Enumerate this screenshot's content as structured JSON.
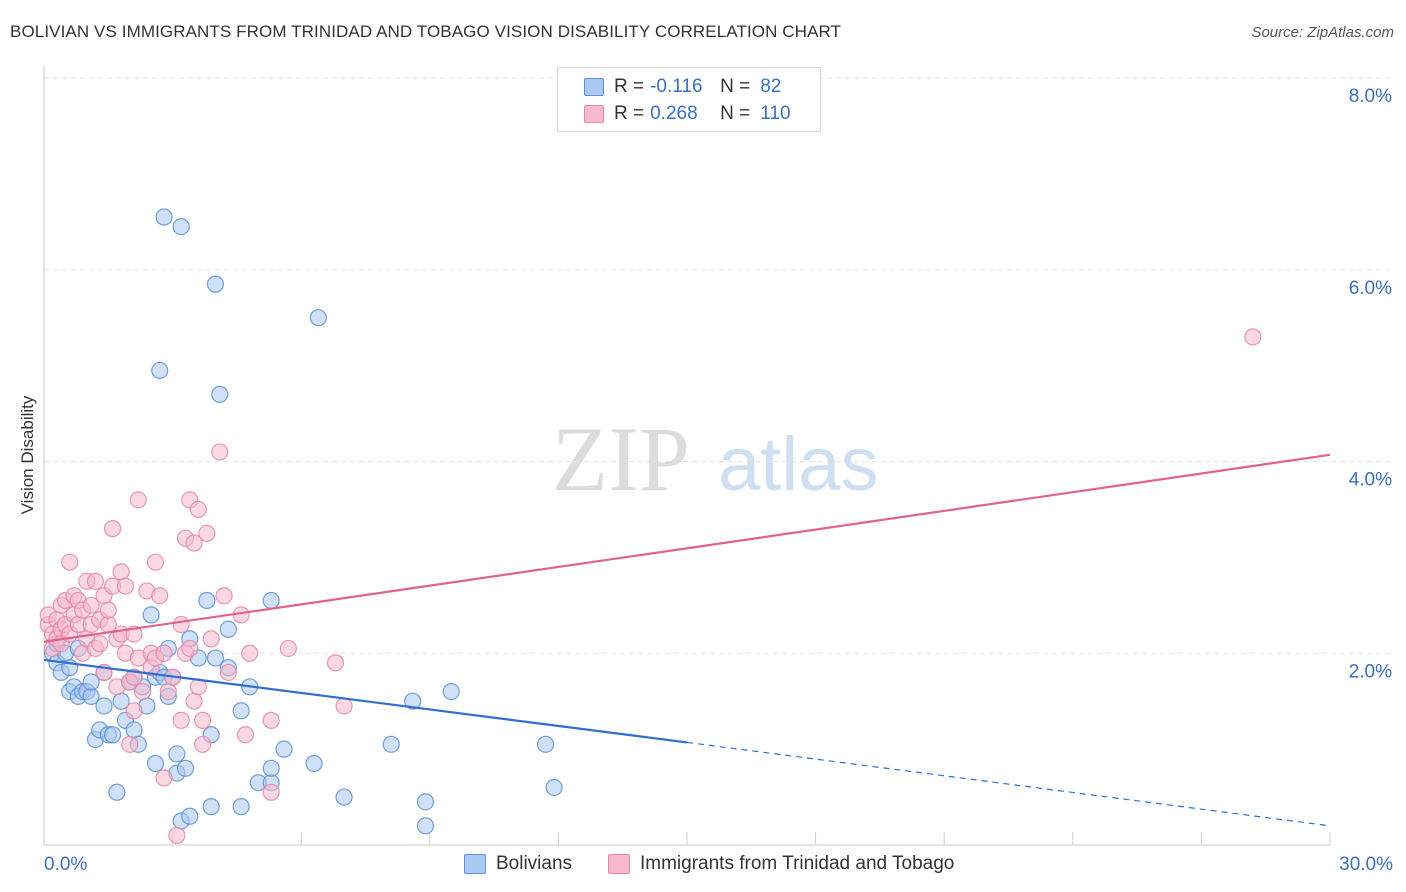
{
  "title": "BOLIVIAN VS IMMIGRANTS FROM TRINIDAD AND TOBAGO VISION DISABILITY CORRELATION CHART",
  "source": "Source: ZipAtlas.com",
  "watermark": {
    "zip": "ZIP",
    "atlas": "atlas"
  },
  "colors": {
    "blue_fill": "#aac8f0",
    "blue_stroke": "#5b8fd8",
    "blue_line": "#2f6fd0",
    "pink_fill": "#f6b8cc",
    "pink_stroke": "#e886a6",
    "pink_line": "#e2628c",
    "tick_label": "#3a6fc4",
    "grid": "#e3e3e3"
  },
  "stats": [
    {
      "r_label": "R =",
      "r_value": "-0.116",
      "n_label": "N =",
      "n_value": "82",
      "color": "blue"
    },
    {
      "r_label": "R =",
      "r_value": "0.268",
      "n_label": "N =",
      "n_value": "110",
      "color": "pink"
    }
  ],
  "legend": [
    {
      "label": "Bolivians",
      "color": "blue"
    },
    {
      "label": "Immigrants from Trinidad and Tobago",
      "color": "pink"
    }
  ],
  "chart_data": {
    "type": "scatter",
    "title": "BOLIVIAN VS IMMIGRANTS FROM TRINIDAD AND TOBAGO VISION DISABILITY CORRELATION CHART",
    "xlabel": "",
    "ylabel": "Vision Disability",
    "xlim": [
      0,
      30
    ],
    "ylim": [
      0,
      8
    ],
    "x_tick_labels": [
      "0.0%",
      "30.0%"
    ],
    "y_ticks": [
      2,
      4,
      6,
      8
    ],
    "y_tick_labels": [
      "2.0%",
      "4.0%",
      "6.0%",
      "8.0%"
    ],
    "grid": true,
    "legend_position": "bottom-center",
    "series": [
      {
        "name": "Bolivians",
        "color": "blue",
        "trend": {
          "x0": 0,
          "y0": 1.93,
          "x1": 15,
          "y1": 1.07,
          "dash_to_x": 30,
          "dash_to_y": 0.2
        },
        "points": [
          [
            0.2,
            2.0
          ],
          [
            0.3,
            2.1
          ],
          [
            0.3,
            1.9
          ],
          [
            0.4,
            1.8
          ],
          [
            0.5,
            2.0
          ],
          [
            0.6,
            1.85
          ],
          [
            0.6,
            1.6
          ],
          [
            0.7,
            1.65
          ],
          [
            0.8,
            2.05
          ],
          [
            0.8,
            1.55
          ],
          [
            0.9,
            1.6
          ],
          [
            1.0,
            1.6
          ],
          [
            1.1,
            1.55
          ],
          [
            1.1,
            1.7
          ],
          [
            1.2,
            1.1
          ],
          [
            1.3,
            1.2
          ],
          [
            1.4,
            1.45
          ],
          [
            1.4,
            1.8
          ],
          [
            1.5,
            1.15
          ],
          [
            1.6,
            1.15
          ],
          [
            1.7,
            0.55
          ],
          [
            1.8,
            1.5
          ],
          [
            1.9,
            1.3
          ],
          [
            2.0,
            1.7
          ],
          [
            2.1,
            1.75
          ],
          [
            2.1,
            1.2
          ],
          [
            2.2,
            1.05
          ],
          [
            2.3,
            1.65
          ],
          [
            2.4,
            1.45
          ],
          [
            2.5,
            2.4
          ],
          [
            2.6,
            1.75
          ],
          [
            2.6,
            0.85
          ],
          [
            2.7,
            1.8
          ],
          [
            2.7,
            4.95
          ],
          [
            2.8,
            6.55
          ],
          [
            2.8,
            1.75
          ],
          [
            2.9,
            2.05
          ],
          [
            2.9,
            1.55
          ],
          [
            3.0,
            1.75
          ],
          [
            3.1,
            0.95
          ],
          [
            3.1,
            0.75
          ],
          [
            3.2,
            0.25
          ],
          [
            3.2,
            6.45
          ],
          [
            3.3,
            0.8
          ],
          [
            3.4,
            0.3
          ],
          [
            3.4,
            2.15
          ],
          [
            3.6,
            1.95
          ],
          [
            3.8,
            2.55
          ],
          [
            3.9,
            1.15
          ],
          [
            3.9,
            0.4
          ],
          [
            4.0,
            1.95
          ],
          [
            4.0,
            5.85
          ],
          [
            4.1,
            4.7
          ],
          [
            4.3,
            1.85
          ],
          [
            4.3,
            2.25
          ],
          [
            4.6,
            1.4
          ],
          [
            4.6,
            0.4
          ],
          [
            4.8,
            1.65
          ],
          [
            5.0,
            0.65
          ],
          [
            5.3,
            0.65
          ],
          [
            5.3,
            0.8
          ],
          [
            5.3,
            2.55
          ],
          [
            5.6,
            1.0
          ],
          [
            6.3,
            0.85
          ],
          [
            6.4,
            5.5
          ],
          [
            7.0,
            0.5
          ],
          [
            8.1,
            1.05
          ],
          [
            8.6,
            1.5
          ],
          [
            8.9,
            0.45
          ],
          [
            8.9,
            0.2
          ],
          [
            9.5,
            1.6
          ],
          [
            11.7,
            1.05
          ],
          [
            11.9,
            0.6
          ]
        ]
      },
      {
        "name": "Immigrants from Trinidad and Tobago",
        "color": "pink",
        "trend": {
          "x0": 0,
          "y0": 2.12,
          "x1": 30,
          "y1": 4.07
        },
        "points": [
          [
            0.1,
            2.3
          ],
          [
            0.1,
            2.4
          ],
          [
            0.2,
            2.2
          ],
          [
            0.2,
            2.05
          ],
          [
            0.3,
            2.35
          ],
          [
            0.3,
            2.15
          ],
          [
            0.4,
            2.25
          ],
          [
            0.4,
            2.5
          ],
          [
            0.4,
            2.1
          ],
          [
            0.5,
            2.3
          ],
          [
            0.5,
            2.55
          ],
          [
            0.6,
            2.95
          ],
          [
            0.6,
            2.2
          ],
          [
            0.7,
            2.4
          ],
          [
            0.7,
            2.6
          ],
          [
            0.8,
            2.3
          ],
          [
            0.8,
            2.55
          ],
          [
            0.9,
            2.0
          ],
          [
            0.9,
            2.45
          ],
          [
            1.0,
            2.75
          ],
          [
            1.0,
            2.15
          ],
          [
            1.1,
            2.3
          ],
          [
            1.1,
            2.5
          ],
          [
            1.2,
            2.05
          ],
          [
            1.2,
            2.75
          ],
          [
            1.3,
            2.35
          ],
          [
            1.3,
            2.1
          ],
          [
            1.4,
            2.6
          ],
          [
            1.4,
            1.8
          ],
          [
            1.5,
            2.3
          ],
          [
            1.5,
            2.45
          ],
          [
            1.6,
            3.3
          ],
          [
            1.6,
            2.7
          ],
          [
            1.7,
            2.15
          ],
          [
            1.7,
            1.65
          ],
          [
            1.8,
            2.85
          ],
          [
            1.8,
            2.2
          ],
          [
            1.9,
            2.0
          ],
          [
            1.9,
            2.7
          ],
          [
            2.0,
            1.05
          ],
          [
            2.0,
            1.7
          ],
          [
            2.1,
            1.4
          ],
          [
            2.1,
            1.75
          ],
          [
            2.1,
            2.2
          ],
          [
            2.2,
            3.6
          ],
          [
            2.2,
            1.95
          ],
          [
            2.3,
            1.6
          ],
          [
            2.4,
            2.65
          ],
          [
            2.5,
            2.0
          ],
          [
            2.5,
            1.85
          ],
          [
            2.6,
            1.95
          ],
          [
            2.6,
            2.95
          ],
          [
            2.7,
            2.6
          ],
          [
            2.8,
            2.0
          ],
          [
            2.8,
            0.7
          ],
          [
            2.9,
            1.6
          ],
          [
            3.0,
            1.75
          ],
          [
            3.1,
            0.1
          ],
          [
            3.2,
            1.3
          ],
          [
            3.2,
            2.3
          ],
          [
            3.3,
            3.2
          ],
          [
            3.3,
            2.0
          ],
          [
            3.4,
            3.6
          ],
          [
            3.4,
            2.05
          ],
          [
            3.5,
            3.15
          ],
          [
            3.5,
            1.5
          ],
          [
            3.6,
            1.65
          ],
          [
            3.6,
            3.5
          ],
          [
            3.7,
            1.3
          ],
          [
            3.7,
            1.05
          ],
          [
            3.8,
            3.25
          ],
          [
            3.9,
            2.15
          ],
          [
            4.1,
            4.1
          ],
          [
            4.2,
            2.6
          ],
          [
            4.3,
            1.8
          ],
          [
            4.6,
            2.4
          ],
          [
            4.7,
            1.15
          ],
          [
            4.8,
            2.0
          ],
          [
            5.3,
            1.3
          ],
          [
            5.3,
            0.55
          ],
          [
            5.7,
            2.05
          ],
          [
            6.8,
            1.9
          ],
          [
            7.0,
            1.45
          ],
          [
            28.2,
            5.3
          ]
        ]
      }
    ]
  }
}
